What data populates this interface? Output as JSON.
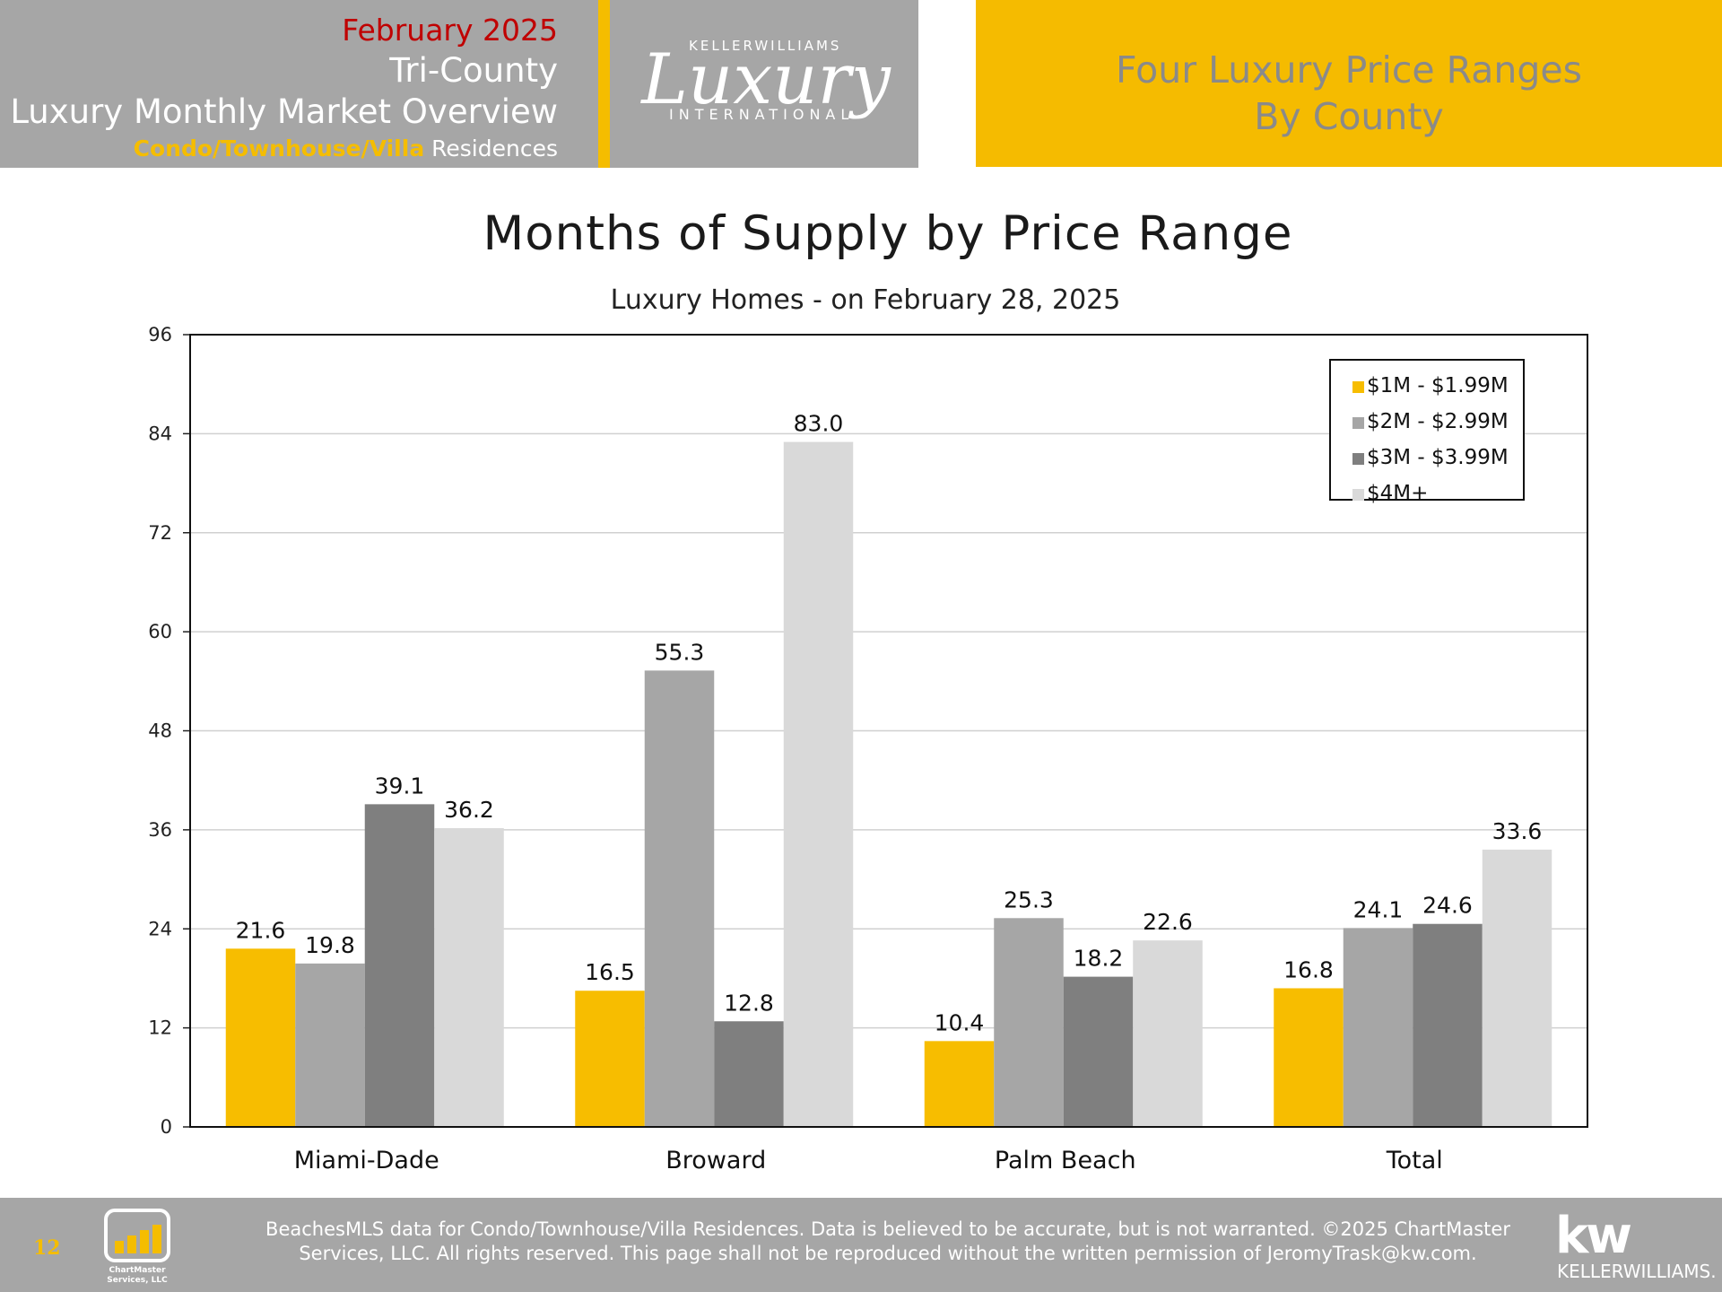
{
  "header": {
    "month": "February 2025",
    "region": "Tri-County",
    "title": "Luxury Monthly Market Overview",
    "type_highlight": "Condo/Townhouse/Villa",
    "type_rest": " Residences",
    "logo_top": "KELLERWILLIAMS",
    "logo_main": "Luxury",
    "logo_bottom": "INTERNATIONAL",
    "right_line1": "Four Luxury Price Ranges",
    "right_line2": "By County"
  },
  "colors": {
    "gold": "#f5bd00",
    "gray_header": "#a6a6a6",
    "month_red": "#c00000"
  },
  "chart_data": {
    "type": "bar",
    "title": "Months of Supply by Price Range",
    "subtitle": "Luxury Homes - on February 28, 2025",
    "categories": [
      "Miami-Dade",
      "Broward",
      "Palm Beach",
      "Total"
    ],
    "series": [
      {
        "name": "$1M - $1.99M",
        "color": "#f7bd00",
        "values": [
          21.6,
          16.5,
          10.4,
          16.8
        ]
      },
      {
        "name": "$2M - $2.99M",
        "color": "#a6a6a6",
        "values": [
          19.8,
          55.3,
          25.3,
          24.1
        ]
      },
      {
        "name": "$3M - $3.99M",
        "color": "#7f7f7f",
        "values": [
          39.1,
          12.8,
          18.2,
          24.6
        ]
      },
      {
        "name": "$4M+",
        "color": "#d9d9d9",
        "values": [
          36.2,
          83.0,
          22.6,
          33.6
        ]
      }
    ],
    "ylim": [
      0,
      96
    ],
    "yticks": [
      0,
      12,
      24,
      36,
      48,
      60,
      72,
      84,
      96
    ],
    "grid": true,
    "legend": "top-right",
    "data_labels": true
  },
  "footer": {
    "page_number": "12",
    "chartmaster_logo": "ChartMaster Services, LLC",
    "disclaimer_line1": "BeachesMLS data for Condo/Townhouse/Villa Residences.  Data is believed to be accurate, but is not warranted.   ©2025  ChartMaster",
    "disclaimer_line2": "Services, LLC.  All rights reserved. This page shall not be reproduced without the written permission of JeromyTrask@kw.com.",
    "kw_mark": "kw",
    "kw_name": "KELLERWILLIAMS."
  }
}
